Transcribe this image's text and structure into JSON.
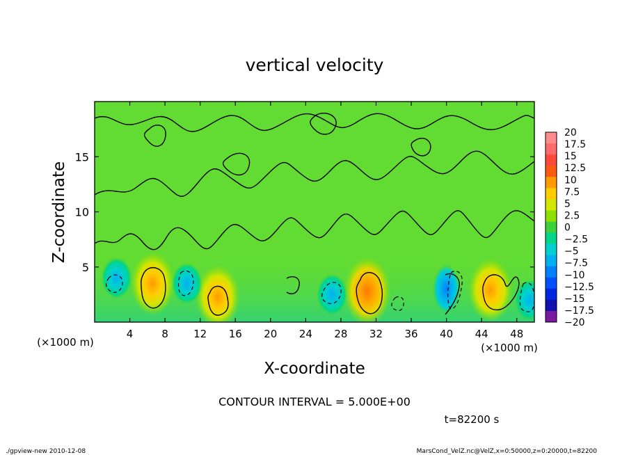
{
  "chart_data": {
    "type": "heatmap",
    "title": "vertical velocity",
    "xlabel": "X-coordinate",
    "ylabel": "Z-coordinate",
    "x_unit_label": "(×1000 m)",
    "y_unit_label": "(×1000 m)",
    "xlim": [
      0,
      50
    ],
    "ylim": [
      0,
      20
    ],
    "x_ticks": [
      4,
      8,
      12,
      16,
      20,
      24,
      28,
      32,
      36,
      40,
      44,
      48
    ],
    "y_ticks": [
      5,
      10,
      15
    ],
    "contour_interval_text": "CONTOUR INTERVAL = 5.000E+00",
    "time_label": "t=82200 s",
    "colorbar": {
      "levels": [
        "20",
        "17.5",
        "15",
        "12.5",
        "10",
        "7.5",
        "5",
        "2.5",
        "0",
        "−2.5",
        "−5",
        "−7.5",
        "−10",
        "−12.5",
        "−15",
        "−17.5",
        "−20"
      ],
      "colors": [
        "#ff8c8c",
        "#ff6a6a",
        "#ff4a3a",
        "#ff5a10",
        "#ff9a00",
        "#ffcc00",
        "#d4e500",
        "#8ee000",
        "#3cd23c",
        "#00d58a",
        "#00d0d0",
        "#00b0f0",
        "#0080ff",
        "#0050ff",
        "#0028e0",
        "#1010b0",
        "#7a1aa0"
      ]
    },
    "background_color": "#62dc32",
    "upward_cells": [
      {
        "x": 6.6,
        "z": 3.5,
        "peak": "7.5"
      },
      {
        "x": 14.0,
        "z": 2.3,
        "peak": "7.5"
      },
      {
        "x": 31.0,
        "z": 2.8,
        "peak": "10"
      },
      {
        "x": 45.0,
        "z": 2.9,
        "peak": "7.5"
      }
    ],
    "downward_cells": [
      {
        "x": 2.5,
        "z": 4.0,
        "trough": "-5"
      },
      {
        "x": 10.5,
        "z": 3.5,
        "trough": "-5"
      },
      {
        "x": 27.0,
        "z": 2.5,
        "trough": "-5"
      },
      {
        "x": 40.0,
        "z": 3.0,
        "trough": "-7.5"
      },
      {
        "x": 49.5,
        "z": 2.0,
        "trough": "-5"
      }
    ]
  },
  "footer": {
    "left": "./gpview-new  2010-12-08",
    "right": "MarsCond_VelZ.nc@VelZ,x=0:50000,z=0:20000,t=82200"
  }
}
